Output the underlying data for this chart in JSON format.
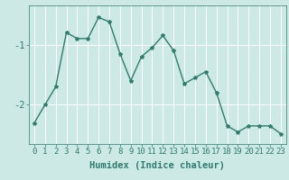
{
  "x": [
    0,
    1,
    2,
    3,
    4,
    5,
    6,
    7,
    8,
    9,
    10,
    11,
    12,
    13,
    14,
    15,
    16,
    17,
    18,
    19,
    20,
    21,
    22,
    23
  ],
  "y": [
    -2.3,
    -2.0,
    -1.7,
    -0.8,
    -0.9,
    -0.9,
    -0.55,
    -0.62,
    -1.15,
    -1.6,
    -1.2,
    -1.05,
    -0.85,
    -1.1,
    -1.65,
    -1.55,
    -1.45,
    -1.8,
    -2.35,
    -2.45,
    -2.35,
    -2.35,
    -2.35,
    -2.48
  ],
  "line_color": "#2e7d6e",
  "marker": "*",
  "marker_size": 3,
  "bg_color": "#cce9e5",
  "grid_color": "#ffffff",
  "xlabel": "Humidex (Indice chaleur)",
  "ylim": [
    -2.65,
    -0.35
  ],
  "yticks": [
    -2,
    -1
  ],
  "ytick_labels": [
    "-2",
    "-1"
  ],
  "xticks": [
    0,
    1,
    2,
    3,
    4,
    5,
    6,
    7,
    8,
    9,
    10,
    11,
    12,
    13,
    14,
    15,
    16,
    17,
    18,
    19,
    20,
    21,
    22,
    23
  ],
  "font_color": "#2e7d6e",
  "xlabel_fontsize": 7.5,
  "tick_fontsize": 6.5,
  "linewidth": 1.0
}
